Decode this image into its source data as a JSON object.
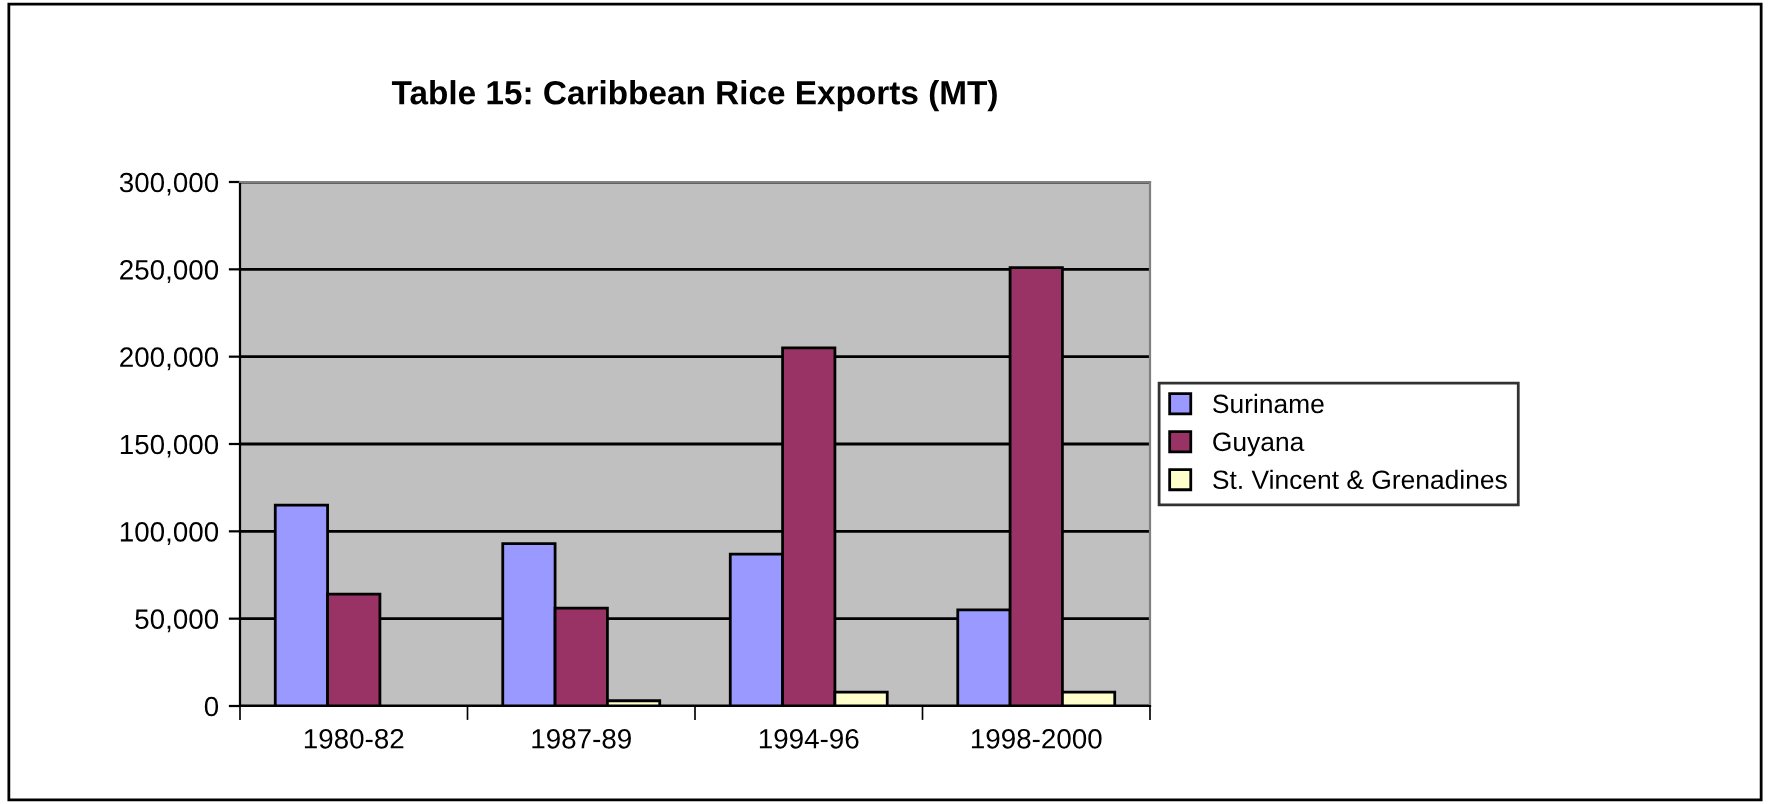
{
  "chart_data": {
    "type": "bar",
    "title": "Table 15: Caribbean Rice Exports (MT)",
    "categories": [
      "1980-82",
      "1987-89",
      "1994-96",
      "1998-2000"
    ],
    "series": [
      {
        "name": "Suriname",
        "color": "#9999ff",
        "values": [
          115000,
          93000,
          87000,
          55000
        ]
      },
      {
        "name": "Guyana",
        "color": "#993366",
        "values": [
          64000,
          56000,
          205000,
          251000
        ]
      },
      {
        "name": "St. Vincent & Grenadines",
        "color": "#ffffcc",
        "values": [
          null,
          3000,
          8000,
          8000
        ]
      }
    ],
    "ylim": [
      0,
      300000
    ],
    "yticks": [
      {
        "value": 0,
        "label": "0"
      },
      {
        "value": 50000,
        "label": "50,000"
      },
      {
        "value": 100000,
        "label": "100,000"
      },
      {
        "value": 150000,
        "label": "150,000"
      },
      {
        "value": 200000,
        "label": "200,000"
      },
      {
        "value": 250000,
        "label": "250,000"
      },
      {
        "value": 300000,
        "label": "300,000"
      }
    ],
    "grid": "y",
    "legend": "right"
  }
}
